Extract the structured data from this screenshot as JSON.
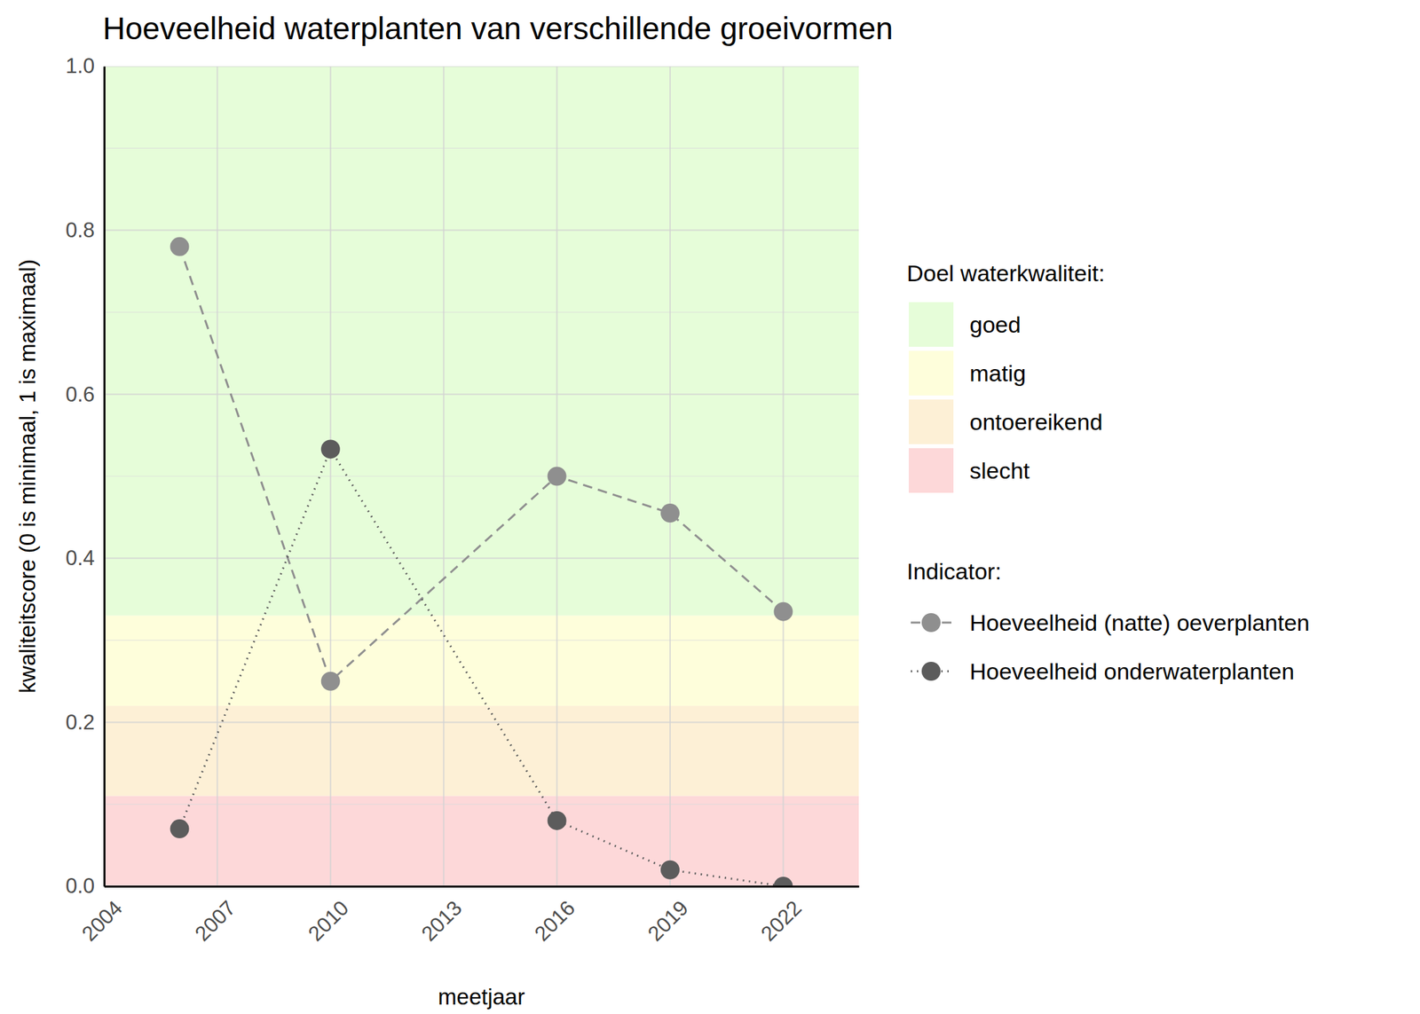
{
  "chart_data": {
    "type": "line",
    "title": "Hoeveelheid waterplanten van verschillende groeivormen",
    "x_label": "meetjaar",
    "y_label": "kwaliteitscore (0 is minimaal, 1 is maximaal)",
    "x": [
      2006,
      2010,
      2016,
      2019,
      2022
    ],
    "xlim": [
      2004,
      2024
    ],
    "xticks": [
      2004,
      2007,
      2010,
      2013,
      2016,
      2019,
      2022
    ],
    "ylim": [
      0,
      1
    ],
    "yticks": [
      {
        "value": 0,
        "label": "0.0"
      },
      0.2,
      0.4,
      0.6,
      0.8,
      {
        "value": 1,
        "label": "1.0"
      }
    ],
    "grid": true,
    "bands_title": "Doel waterkwaliteit:",
    "bands": [
      {
        "name": "goed",
        "from": 0.33,
        "to": 1,
        "color": "#e6fdd9"
      },
      {
        "name": "matig",
        "from": 0.22,
        "to": 0.33,
        "color": "#fefedb"
      },
      {
        "name": "ontoereikend",
        "from": 0.11,
        "to": 0.22,
        "color": "#fdf0d6"
      },
      {
        "name": "slecht",
        "from": 0,
        "to": 0.11,
        "color": "#fdd8d9"
      }
    ],
    "legend_title": "Indicator:",
    "series": [
      {
        "name": "Hoeveelheid (natte) oeverplanten",
        "color": "#8f8f8f",
        "line_style": "dashed",
        "marker": "circle",
        "values": [
          0.78,
          0.25,
          0.5,
          0.455,
          0.335
        ]
      },
      {
        "name": "Hoeveelheid onderwaterplanten",
        "color": "#5c5c5c",
        "line_style": "dotted",
        "marker": "circle",
        "values": [
          0.07,
          0.533,
          0.08,
          0.02,
          0.0
        ]
      }
    ]
  }
}
